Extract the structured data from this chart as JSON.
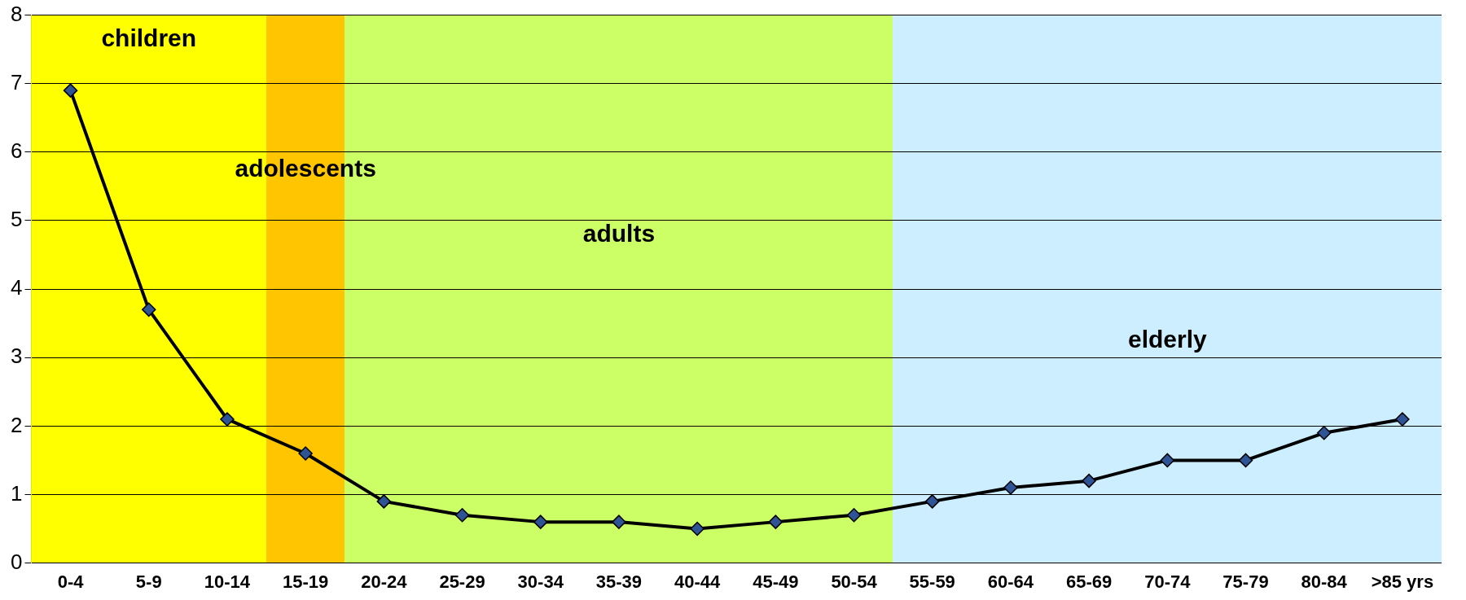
{
  "chart_data": {
    "type": "line",
    "categories": [
      "0-4",
      "5-9",
      "10-14",
      "15-19",
      "20-24",
      "25-29",
      "30-34",
      "35-39",
      "40-44",
      "45-49",
      "50-54",
      "55-59",
      "60-64",
      "65-69",
      "70-74",
      "75-79",
      "80-84",
      ">85 yrs"
    ],
    "series": [
      {
        "color": "#000000",
        "values": [
          6.9,
          3.7,
          2.1,
          1.6,
          0.9,
          0.7,
          0.6,
          0.6,
          0.5,
          0.6,
          0.7,
          0.9,
          1.1,
          1.2,
          1.5,
          1.5,
          1.9,
          2.1
        ]
      }
    ],
    "bands": [
      {
        "axis": "x",
        "from": "0-4",
        "to": "10-14",
        "label": "children",
        "color": "#ffff00"
      },
      {
        "axis": "x",
        "from": "15-19",
        "to": "15-19",
        "label": "adolescents",
        "color": "#ffc600"
      },
      {
        "axis": "x",
        "from": "20-24",
        "to": "50-54",
        "label": "adults",
        "color": "#ccff66"
      },
      {
        "axis": "x",
        "from": "55-59",
        "to": ">85 yrs",
        "label": "elderly",
        "color": "#cceeff"
      }
    ],
    "ylim": [
      0,
      8
    ],
    "yticks": [
      0,
      1,
      2,
      3,
      4,
      5,
      6,
      7,
      8
    ],
    "grid": "y",
    "legend": false,
    "marker": "diamond",
    "line_style": "solid"
  }
}
